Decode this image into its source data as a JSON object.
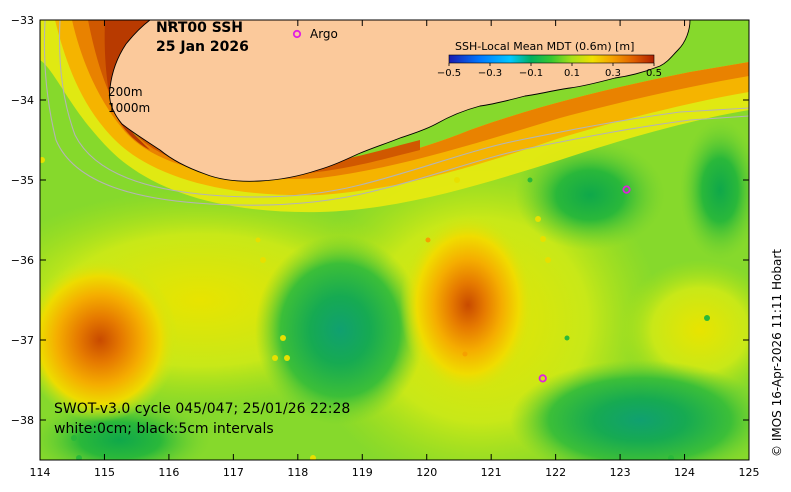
{
  "map": {
    "title_line1": "NRT00 SSH",
    "title_line2": "25 Jan 2026",
    "argo_label": "Argo",
    "isobath_200": "200m",
    "isobath_1000": "1000m",
    "footer_line1": "SWOT-v3.0 cycle 045/047; 25/01/26 22:28",
    "footer_line2": "white:0cm; black:5cm intervals",
    "credit": "© IMOS 16-Apr-2026 11:11 Hobart",
    "colorbar": {
      "title": "SSH-Local Mean MDT (0.6m) [m]",
      "ticks": [
        "−0.5",
        "−0.3",
        "−0.1",
        "0.1",
        "0.3",
        "0.5"
      ],
      "stops": [
        {
          "v": -0.5,
          "color": "#1a1ab0"
        },
        {
          "v": -0.35,
          "color": "#0078ff"
        },
        {
          "v": -0.2,
          "color": "#00c8ff"
        },
        {
          "v": -0.1,
          "color": "#00b060"
        },
        {
          "v": 0.0,
          "color": "#38c830"
        },
        {
          "v": 0.1,
          "color": "#a8e018"
        },
        {
          "v": 0.2,
          "color": "#f0e000"
        },
        {
          "v": 0.3,
          "color": "#f5a000"
        },
        {
          "v": 0.4,
          "color": "#e06000"
        },
        {
          "v": 0.5,
          "color": "#b02000"
        }
      ]
    },
    "x_axis": {
      "ticks": [
        "114",
        "115",
        "116",
        "117",
        "118",
        "119",
        "120",
        "121",
        "122",
        "123",
        "124",
        "125"
      ]
    },
    "y_axis": {
      "ticks": [
        "−33",
        "−34",
        "−35",
        "−36",
        "−37",
        "−38"
      ]
    },
    "colors": {
      "land": "#fbc99b",
      "sea_base": "#8ddc2c",
      "coast": "#000000",
      "isobath": "#b4b4b4",
      "argo": "#e020e0"
    },
    "argo_floats": [
      {
        "lon": 123.1,
        "lat": -35.12
      },
      {
        "lon": 121.8,
        "lat": -37.48
      }
    ]
  }
}
